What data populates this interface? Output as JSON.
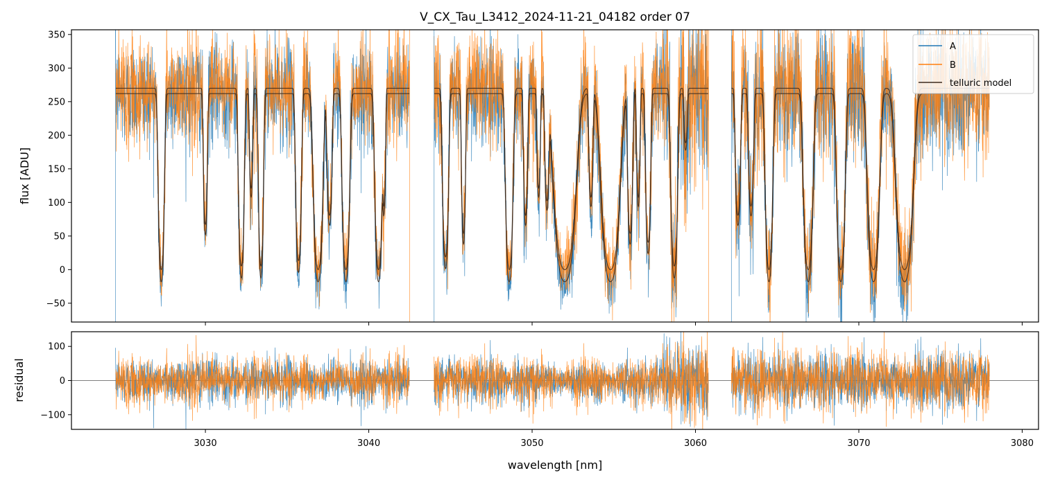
{
  "chart_data": [
    {
      "type": "line",
      "title": "V_CX_Tau_L3412_2024-11-21_04182  order 07",
      "xlabel": "",
      "ylabel": "flux [ADU]",
      "xlim": [
        3021.8,
        3081.0
      ],
      "ylim": [
        -78,
        357
      ],
      "x_ticks": [
        3030,
        3040,
        3050,
        3060,
        3070,
        3080
      ],
      "y_ticks": [
        -50,
        0,
        50,
        100,
        150,
        200,
        250,
        300,
        350
      ],
      "y_tick_labels": [
        "−50",
        "0",
        "50",
        "100",
        "150",
        "200",
        "250",
        "300",
        "350"
      ],
      "legend": {
        "placement": "top-right",
        "entries": [
          "A",
          "B",
          "telluric model"
        ]
      },
      "segments": [
        [
          3024.5,
          3042.5
        ],
        [
          3044.0,
          3060.8
        ],
        [
          3062.2,
          3078.0
        ]
      ],
      "continuum": {
        "A": 262,
        "B": 270
      },
      "absorption_lines": [
        {
          "center": 3027.3,
          "width": 0.18,
          "depth": 1.0
        },
        {
          "center": 3030.0,
          "width": 0.12,
          "depth": 0.75
        },
        {
          "center": 3032.2,
          "width": 0.17,
          "depth": 0.98
        },
        {
          "center": 3032.8,
          "width": 0.1,
          "depth": 0.55
        },
        {
          "center": 3033.4,
          "width": 0.15,
          "depth": 0.98
        },
        {
          "center": 3035.7,
          "width": 0.17,
          "depth": 0.95
        },
        {
          "center": 3036.9,
          "width": 0.28,
          "depth": 1.0
        },
        {
          "center": 3037.6,
          "width": 0.15,
          "depth": 0.7
        },
        {
          "center": 3038.6,
          "width": 0.22,
          "depth": 1.0
        },
        {
          "center": 3040.6,
          "width": 0.22,
          "depth": 1.0
        },
        {
          "center": 3040.95,
          "width": 0.08,
          "depth": 0.6
        },
        {
          "center": 3044.7,
          "width": 0.18,
          "depth": 0.93
        },
        {
          "center": 3045.8,
          "width": 0.12,
          "depth": 0.8
        },
        {
          "center": 3048.6,
          "width": 0.22,
          "depth": 1.0
        },
        {
          "center": 3049.6,
          "width": 0.12,
          "depth": 0.7
        },
        {
          "center": 3050.4,
          "width": 0.1,
          "depth": 0.55
        },
        {
          "center": 3050.9,
          "width": 0.12,
          "depth": 0.6
        },
        {
          "center": 3052.0,
          "width": 0.65,
          "depth": 1.0
        },
        {
          "center": 3053.6,
          "width": 0.12,
          "depth": 0.6
        },
        {
          "center": 3054.8,
          "width": 0.55,
          "depth": 1.0
        },
        {
          "center": 3056.0,
          "width": 0.15,
          "depth": 0.8
        },
        {
          "center": 3056.5,
          "width": 0.1,
          "depth": 0.6
        },
        {
          "center": 3057.1,
          "width": 0.15,
          "depth": 0.85
        },
        {
          "center": 3058.7,
          "width": 0.2,
          "depth": 0.98
        },
        {
          "center": 3059.4,
          "width": 0.1,
          "depth": 0.3
        },
        {
          "center": 3062.6,
          "width": 0.15,
          "depth": 0.7
        },
        {
          "center": 3063.4,
          "width": 0.15,
          "depth": 0.65
        },
        {
          "center": 3064.5,
          "width": 0.22,
          "depth": 1.0
        },
        {
          "center": 3066.9,
          "width": 0.28,
          "depth": 1.0
        },
        {
          "center": 3068.9,
          "width": 0.25,
          "depth": 1.0
        },
        {
          "center": 3070.9,
          "width": 0.35,
          "depth": 1.0
        },
        {
          "center": 3072.8,
          "width": 0.5,
          "depth": 1.0
        }
      ]
    },
    {
      "type": "line",
      "title": "",
      "xlabel": "wavelength [nm]",
      "ylabel": "residual",
      "xlim": [
        3021.8,
        3081.0
      ],
      "ylim": [
        -143,
        143
      ],
      "x_ticks": [
        3030,
        3040,
        3050,
        3060,
        3070,
        3080
      ],
      "y_ticks": [
        -100,
        0,
        100
      ],
      "y_tick_labels": [
        "−100",
        "0",
        "100"
      ],
      "zero_line": true,
      "segments": [
        [
          3024.5,
          3042.5
        ],
        [
          3044.0,
          3060.8
        ],
        [
          3062.2,
          3078.0
        ]
      ]
    }
  ],
  "colors": {
    "A": "#1f77b4",
    "B": "#ff7f0e",
    "telluric": "#3b2a1e",
    "axes": "#000000",
    "zero_line": "#555555"
  }
}
